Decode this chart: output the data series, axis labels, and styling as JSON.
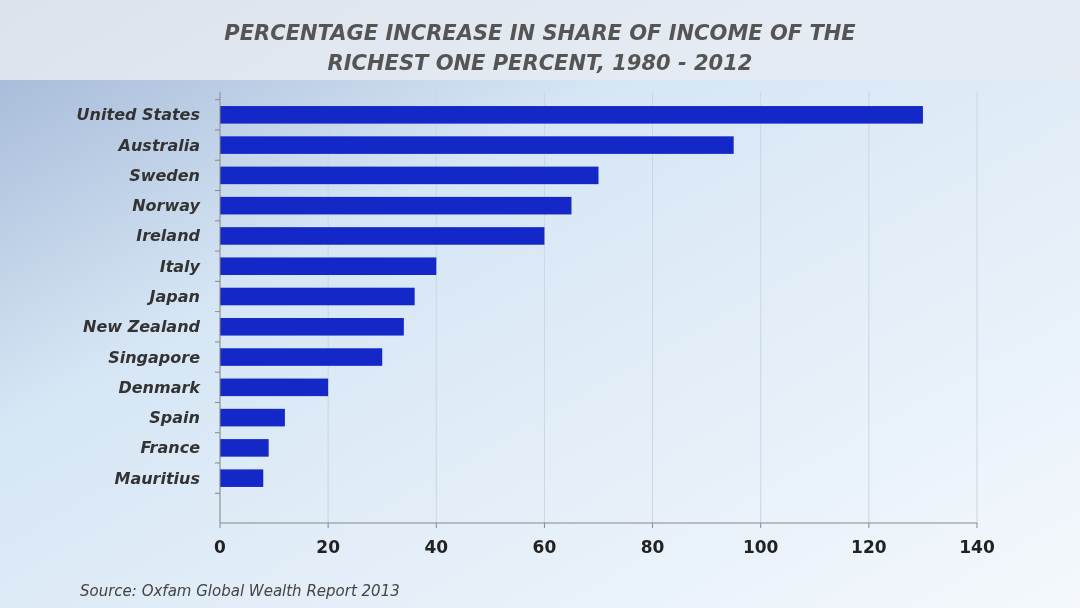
{
  "chart_data": {
    "type": "bar",
    "orientation": "horizontal",
    "title": "PERCENTAGE INCREASE IN SHARE OF INCOME OF THE\nRICHEST ONE PERCENT, 1980 - 2012",
    "categories": [
      "United States",
      "Australia",
      "Sweden",
      "Norway",
      "Ireland",
      "Italy",
      "Japan",
      "New Zealand",
      "Singapore",
      "Denmark",
      "Spain",
      "France",
      "Mauritius"
    ],
    "values": [
      130,
      95,
      70,
      65,
      60,
      40,
      36,
      34,
      30,
      20,
      12,
      9,
      8
    ],
    "color": "#1428c8",
    "xlim": [
      0,
      140
    ],
    "xticks": [
      0,
      20,
      40,
      60,
      80,
      100,
      120,
      140
    ],
    "grid": "x",
    "annotations": [
      "Source: Oxfam Global Wealth Report 2013"
    ]
  }
}
